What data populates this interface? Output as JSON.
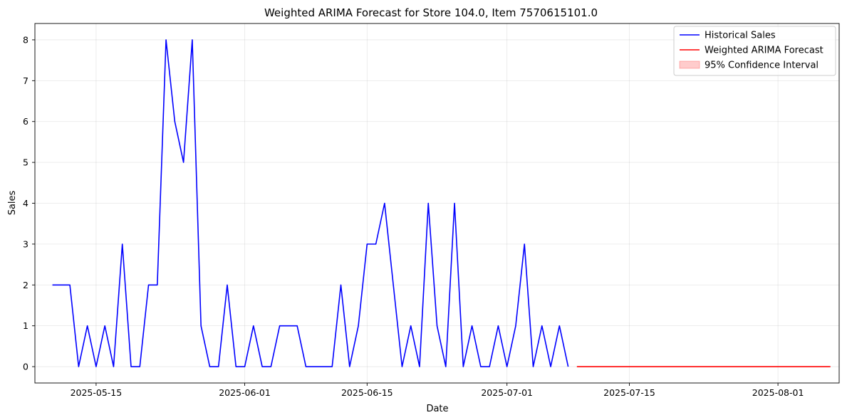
{
  "chart_data": {
    "type": "line",
    "title": "Weighted ARIMA Forecast for Store 104.0, Item 7570615101.0",
    "xlabel": "Date",
    "ylabel": "Sales",
    "x_type": "date",
    "xlim": [
      "2025-05-08",
      "2025-08-08"
    ],
    "ylim": [
      -0.4,
      8.4
    ],
    "x_ticks": [
      "2025-05-15",
      "2025-06-01",
      "2025-06-15",
      "2025-07-01",
      "2025-07-15",
      "2025-08-01"
    ],
    "y_ticks": [
      0,
      1,
      2,
      3,
      4,
      5,
      6,
      7,
      8
    ],
    "grid": true,
    "legend_position": "top-right",
    "series": [
      {
        "name": "Historical Sales",
        "color": "#0000ff",
        "kind": "line",
        "dates": [
          "2025-05-10",
          "2025-05-11",
          "2025-05-12",
          "2025-05-13",
          "2025-05-14",
          "2025-05-15",
          "2025-05-16",
          "2025-05-17",
          "2025-05-18",
          "2025-05-19",
          "2025-05-20",
          "2025-05-21",
          "2025-05-22",
          "2025-05-23",
          "2025-05-24",
          "2025-05-25",
          "2025-05-26",
          "2025-05-27",
          "2025-05-28",
          "2025-05-29",
          "2025-05-30",
          "2025-05-31",
          "2025-06-01",
          "2025-06-02",
          "2025-06-03",
          "2025-06-04",
          "2025-06-05",
          "2025-06-06",
          "2025-06-07",
          "2025-06-08",
          "2025-06-09",
          "2025-06-10",
          "2025-06-11",
          "2025-06-12",
          "2025-06-13",
          "2025-06-14",
          "2025-06-15",
          "2025-06-16",
          "2025-06-17",
          "2025-06-18",
          "2025-06-19",
          "2025-06-20",
          "2025-06-21",
          "2025-06-22",
          "2025-06-23",
          "2025-06-24",
          "2025-06-25",
          "2025-06-26",
          "2025-06-27",
          "2025-06-28",
          "2025-06-29",
          "2025-06-30",
          "2025-07-01",
          "2025-07-02",
          "2025-07-03",
          "2025-07-04",
          "2025-07-05",
          "2025-07-06",
          "2025-07-07",
          "2025-07-08"
        ],
        "values": [
          2,
          2,
          2,
          0,
          1,
          0,
          1,
          0,
          3,
          0,
          0,
          2,
          2,
          8,
          6,
          5,
          8,
          1,
          0,
          0,
          2,
          0,
          0,
          1,
          0,
          0,
          1,
          1,
          1,
          0,
          0,
          0,
          0,
          2,
          0,
          1,
          3,
          3,
          4,
          2,
          0,
          1,
          0,
          4,
          1,
          0,
          4,
          0,
          1,
          0,
          0,
          1,
          0,
          1,
          3,
          0,
          1,
          0,
          1,
          0
        ]
      },
      {
        "name": "Weighted ARIMA Forecast",
        "color": "#ff0000",
        "kind": "line",
        "dates": [
          "2025-07-09",
          "2025-08-07"
        ],
        "values": [
          0,
          0
        ]
      },
      {
        "name": "95% Confidence Interval",
        "color": "#ff0000",
        "kind": "band",
        "dates": [
          "2025-07-09",
          "2025-08-07"
        ],
        "lower": [
          0,
          0
        ],
        "upper": [
          0,
          0
        ]
      }
    ]
  }
}
